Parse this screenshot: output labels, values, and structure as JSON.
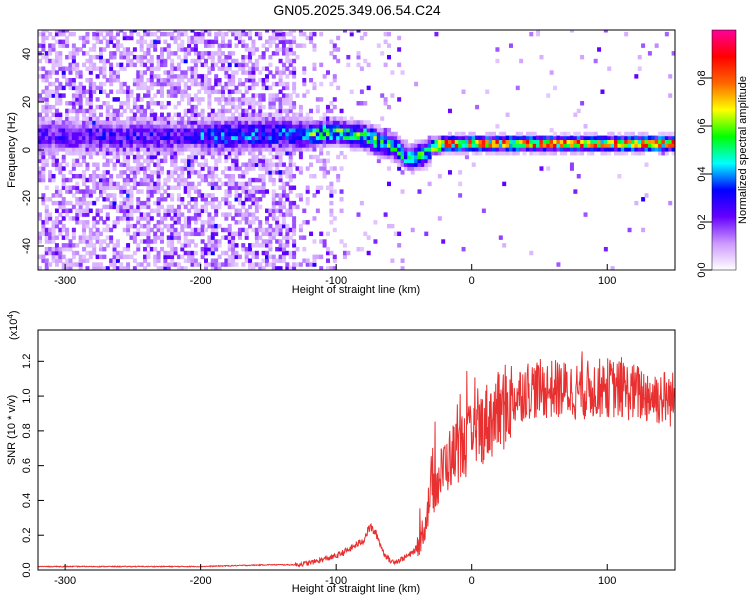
{
  "page": {
    "title": "GN05.2025.349.06.54.C24"
  },
  "chart_data": [
    {
      "type": "heatmap",
      "xlabel": "Height of straight line (km)",
      "ylabel": "Frequency (Hz)",
      "xlim": [
        -320,
        150
      ],
      "ylim": [
        -50,
        50
      ],
      "x_ticks": [
        -300,
        -200,
        -100,
        0,
        100
      ],
      "y_ticks": [
        -40,
        -20,
        0,
        20,
        40
      ],
      "colorbar": {
        "label": "Normalized spectral amplitude",
        "range": [
          0,
          1
        ],
        "ticks": [
          0.0,
          0.2,
          0.4,
          0.6,
          0.8
        ],
        "tick_labels": [
          "0.0",
          "0.2",
          "0.4",
          "0.6",
          "0.8"
        ],
        "colors": [
          "#ffffff",
          "#cc99ff",
          "#6600ff",
          "#0000ff",
          "#00ffff",
          "#00ff00",
          "#ffff00",
          "#ff6600",
          "#ff0000",
          "#ff0099"
        ]
      },
      "ridge": {
        "x": [
          -200,
          -150,
          -120,
          -100,
          -80,
          -60,
          -50,
          -45,
          -40,
          -35,
          -30,
          -20,
          0,
          50,
          100,
          150
        ],
        "y": [
          5,
          6,
          6,
          7,
          5,
          1,
          -3,
          -4,
          -3,
          -2,
          1,
          2,
          2,
          2,
          2,
          2
        ]
      }
    },
    {
      "type": "line",
      "xlabel": "Height of straight line (km)",
      "ylabel": "SNR (10 * v/v)",
      "y_multiplier": "(x10",
      "y_multiplier_exp": "4",
      "y_multiplier_close": ")",
      "xlim": [
        -320,
        150
      ],
      "ylim": [
        0,
        1.38
      ],
      "x_ticks": [
        -300,
        -200,
        -100,
        0,
        100
      ],
      "y_ticks": [
        0.0,
        0.2,
        0.4,
        0.6,
        0.8,
        1.0,
        1.2
      ],
      "y_tick_labels": [
        "0.0",
        "0.2",
        "0.4",
        "0.6",
        "0.8",
        "1.0",
        "1.2"
      ],
      "series": [
        {
          "color": "#e83030",
          "x": [
            -320,
            -250,
            -200,
            -150,
            -130,
            -120,
            -110,
            -100,
            -90,
            -80,
            -75,
            -70,
            -65,
            -60,
            -55,
            -50,
            -45,
            -40,
            -35,
            -30,
            -25,
            -20,
            -10,
            0,
            10,
            20,
            30,
            40,
            60,
            80,
            100,
            120,
            150
          ],
          "y": [
            0.02,
            0.02,
            0.02,
            0.03,
            0.03,
            0.04,
            0.06,
            0.08,
            0.12,
            0.17,
            0.25,
            0.2,
            0.1,
            0.05,
            0.05,
            0.07,
            0.09,
            0.13,
            0.25,
            0.45,
            0.5,
            0.6,
            0.7,
            0.75,
            0.85,
            0.9,
            0.98,
            1.04,
            1.04,
            1.03,
            1.05,
            1.02,
            0.98
          ]
        }
      ]
    }
  ]
}
